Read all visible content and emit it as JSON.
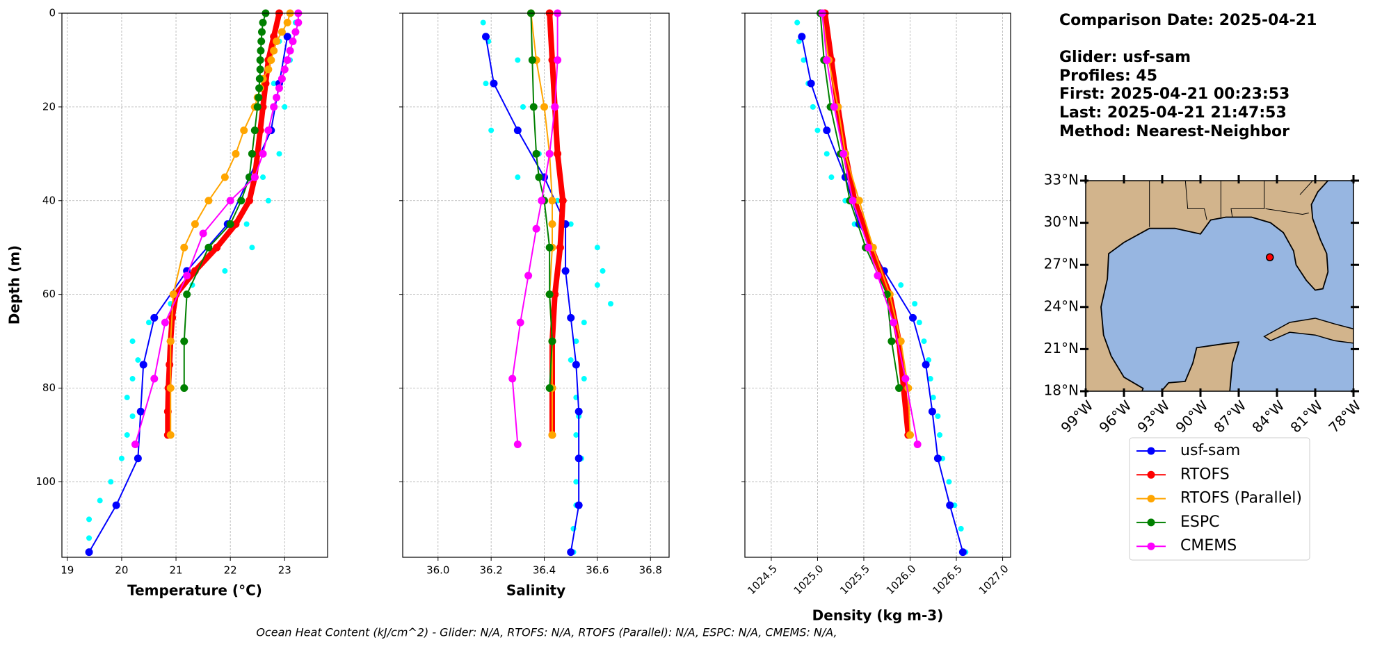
{
  "header": {
    "title": "Comparison Date: 2025-04-21",
    "lines": [
      "Glider: usf-sam",
      "Profiles: 45",
      "First: 2025-04-21 00:23:53",
      "Last: 2025-04-21 21:47:53",
      "Method: Nearest-Neighbor"
    ]
  },
  "footer": "Ocean Heat Content (kJ/cm^2) - Glider: N/A,  RTOFS: N/A,  RTOFS (Parallel): N/A,  ESPC: N/A,  CMEMS: N/A,",
  "chart_data": [
    {
      "type": "line",
      "xlabel": "Temperature (°C)",
      "ylabel": "Depth (m)",
      "xlim": [
        18.9,
        23.79
      ],
      "xticks": [
        19,
        20,
        21,
        22,
        23
      ],
      "ylim": [
        116.1,
        0
      ],
      "yticks": [
        0,
        20,
        40,
        60,
        80,
        100
      ],
      "grid": true,
      "series": [
        {
          "color": "#00ffff",
          "marker": "dot",
          "y": [
            2,
            6,
            10,
            15,
            20,
            25,
            30,
            35,
            40,
            45,
            50,
            55,
            58,
            62,
            66,
            70,
            74,
            78,
            82,
            86,
            90,
            95,
            100,
            104,
            108,
            112,
            115
          ],
          "x": [
            23.2,
            22.9,
            23.1,
            22.8,
            23.0,
            22.7,
            22.9,
            22.6,
            22.7,
            22.3,
            22.4,
            21.9,
            21.3,
            20.9,
            20.5,
            20.2,
            20.3,
            20.2,
            20.1,
            20.2,
            20.1,
            20.0,
            19.8,
            19.6,
            19.4,
            19.4,
            19.4
          ]
        },
        {
          "name": "usf-sam",
          "color": "#0000ff",
          "linewidth": 2,
          "y": [
            5,
            15,
            25,
            35,
            45,
            55,
            65,
            75,
            85,
            95,
            105,
            115
          ],
          "x": [
            23.05,
            22.9,
            22.75,
            22.35,
            21.95,
            21.2,
            20.6,
            20.4,
            20.35,
            20.3,
            19.9,
            19.4
          ]
        },
        {
          "name": "RTOFS",
          "color": "#ff0000",
          "linewidth": 8,
          "y": [
            0,
            5,
            10,
            15,
            20,
            25,
            30,
            35,
            40,
            45,
            50,
            55,
            60,
            65,
            70,
            75,
            80,
            85,
            90
          ],
          "x": [
            22.9,
            22.8,
            22.7,
            22.65,
            22.6,
            22.55,
            22.5,
            22.45,
            22.35,
            22.1,
            21.75,
            21.35,
            21.0,
            20.93,
            20.9,
            20.88,
            20.86,
            20.85,
            20.85
          ]
        },
        {
          "name": "RTOFS (Parallel)",
          "color": "#ffa500",
          "linewidth": 2,
          "y": [
            0,
            2,
            4,
            6,
            8,
            10,
            12,
            14,
            16,
            18,
            20,
            25,
            30,
            35,
            40,
            45,
            50,
            60,
            70,
            80,
            90
          ],
          "x": [
            23.1,
            23.05,
            22.95,
            22.85,
            22.8,
            22.75,
            22.7,
            22.6,
            22.55,
            22.5,
            22.45,
            22.25,
            22.1,
            21.9,
            21.6,
            21.35,
            21.15,
            20.95,
            20.9,
            20.9,
            20.9
          ]
        },
        {
          "name": "ESPC",
          "color": "#008000",
          "linewidth": 2,
          "y": [
            0,
            2,
            4,
            6,
            8,
            10,
            12,
            14,
            16,
            18,
            20,
            25,
            30,
            35,
            40,
            45,
            50,
            60,
            70,
            80
          ],
          "x": [
            22.65,
            22.6,
            22.58,
            22.57,
            22.56,
            22.55,
            22.55,
            22.54,
            22.53,
            22.52,
            22.5,
            22.45,
            22.4,
            22.35,
            22.2,
            22.0,
            21.6,
            21.2,
            21.15,
            21.15
          ]
        },
        {
          "name": "CMEMS",
          "color": "#ff00ff",
          "linewidth": 2,
          "y": [
            0,
            2,
            4,
            6,
            8,
            10,
            12,
            14,
            16,
            18,
            20,
            25,
            30,
            35,
            40,
            47,
            56,
            66,
            78,
            92
          ],
          "x": [
            23.25,
            23.25,
            23.2,
            23.15,
            23.1,
            23.05,
            23.0,
            22.95,
            22.9,
            22.85,
            22.8,
            22.7,
            22.6,
            22.45,
            22.0,
            21.5,
            21.2,
            20.8,
            20.6,
            20.25
          ]
        }
      ]
    },
    {
      "type": "line",
      "xlabel": "Salinity",
      "xlim": [
        35.867,
        36.87
      ],
      "xticks": [
        {
          "value": 36,
          "label": "36.0"
        },
        36.2,
        36.4,
        36.6,
        36.8
      ],
      "ylim": [
        116.1,
        0
      ],
      "yticks": [
        0,
        20,
        40,
        60,
        80,
        100
      ],
      "ytick_labels": false,
      "grid": true,
      "series": [
        {
          "color": "#00ffff",
          "marker": "dot",
          "y": [
            2,
            6,
            10,
            15,
            20,
            25,
            30,
            35,
            40,
            45,
            50,
            55,
            58,
            62,
            66,
            70,
            74,
            78,
            82,
            86,
            90,
            95,
            100,
            105,
            110,
            115
          ],
          "x": [
            36.17,
            36.19,
            36.3,
            36.18,
            36.32,
            36.2,
            36.38,
            36.3,
            36.45,
            36.5,
            36.6,
            36.62,
            36.6,
            36.65,
            36.55,
            36.52,
            36.5,
            36.55,
            36.52,
            36.53,
            36.52,
            36.54,
            36.52,
            36.52,
            36.51,
            36.51
          ]
        },
        {
          "color": "#0000ff",
          "linewidth": 2,
          "y": [
            5,
            15,
            25,
            35,
            45,
            55,
            65,
            75,
            85,
            95,
            105,
            115
          ],
          "x": [
            36.18,
            36.21,
            36.3,
            36.4,
            36.48,
            36.48,
            36.5,
            36.52,
            36.53,
            36.53,
            36.53,
            36.5
          ]
        },
        {
          "color": "#ff0000",
          "linewidth": 8,
          "y": [
            0,
            10,
            20,
            30,
            40,
            50,
            60,
            70,
            80,
            90
          ],
          "x": [
            36.42,
            36.43,
            36.44,
            36.45,
            36.47,
            36.46,
            36.44,
            36.43,
            36.43,
            36.43
          ]
        },
        {
          "color": "#ffa500",
          "linewidth": 2,
          "y": [
            0,
            10,
            20,
            30,
            40,
            45,
            50,
            60,
            70,
            80,
            90
          ],
          "x": [
            36.35,
            36.37,
            36.4,
            36.42,
            36.43,
            36.43,
            36.43,
            36.42,
            36.43,
            36.43,
            36.43
          ]
        },
        {
          "color": "#008000",
          "linewidth": 2,
          "y": [
            0,
            10,
            20,
            30,
            35,
            40,
            50,
            60,
            70,
            80
          ],
          "x": [
            36.35,
            36.355,
            36.36,
            36.37,
            36.38,
            36.4,
            36.42,
            36.42,
            36.43,
            36.42
          ]
        },
        {
          "color": "#ff00ff",
          "linewidth": 2,
          "y": [
            0,
            10,
            20,
            30,
            40,
            46,
            56,
            66,
            78,
            92
          ],
          "x": [
            36.45,
            36.45,
            36.44,
            36.42,
            36.39,
            36.37,
            36.34,
            36.31,
            36.28,
            36.3
          ]
        }
      ]
    },
    {
      "type": "line",
      "xlabel": "Density (kg m-3)",
      "xlim": [
        1024.215,
        1027.086
      ],
      "xticks": [
        1024.5,
        {
          "value": 1025,
          "label": "1025.0"
        },
        1025.5,
        {
          "value": 1026,
          "label": "1026.0"
        },
        1026.5,
        {
          "value": 1027,
          "label": "1027.0"
        }
      ],
      "xtick_rotation": 45,
      "ylim": [
        116.1,
        0
      ],
      "yticks": [
        0,
        20,
        40,
        60,
        80,
        100
      ],
      "ytick_labels": false,
      "grid": true,
      "series": [
        {
          "color": "#00ffff",
          "marker": "dot",
          "y": [
            2,
            6,
            10,
            15,
            20,
            25,
            30,
            35,
            40,
            45,
            50,
            55,
            58,
            62,
            66,
            70,
            74,
            78,
            82,
            86,
            90,
            95,
            100,
            105,
            110,
            115
          ],
          "x": [
            1024.78,
            1024.8,
            1024.85,
            1024.9,
            1024.95,
            1025.0,
            1025.1,
            1025.15,
            1025.3,
            1025.4,
            1025.6,
            1025.7,
            1025.9,
            1026.05,
            1026.1,
            1026.15,
            1026.2,
            1026.22,
            1026.25,
            1026.3,
            1026.32,
            1026.35,
            1026.42,
            1026.48,
            1026.55,
            1026.6
          ]
        },
        {
          "color": "#0000ff",
          "linewidth": 2,
          "y": [
            5,
            15,
            25,
            35,
            45,
            55,
            65,
            75,
            85,
            95,
            105,
            115
          ],
          "x": [
            1024.83,
            1024.93,
            1025.1,
            1025.3,
            1025.45,
            1025.72,
            1026.03,
            1026.17,
            1026.24,
            1026.3,
            1026.43,
            1026.57
          ]
        },
        {
          "color": "#ff0000",
          "linewidth": 8,
          "y": [
            0,
            10,
            20,
            30,
            40,
            50,
            60,
            70,
            80,
            90
          ],
          "x": [
            1025.08,
            1025.15,
            1025.22,
            1025.3,
            1025.4,
            1025.58,
            1025.78,
            1025.88,
            1025.93,
            1025.98
          ]
        },
        {
          "color": "#ffa500",
          "linewidth": 2,
          "y": [
            0,
            10,
            20,
            30,
            40,
            50,
            60,
            70,
            80,
            90
          ],
          "x": [
            1025.05,
            1025.12,
            1025.22,
            1025.3,
            1025.45,
            1025.6,
            1025.78,
            1025.9,
            1025.98,
            1026.0
          ]
        },
        {
          "color": "#008000",
          "linewidth": 2,
          "y": [
            0,
            10,
            20,
            30,
            40,
            50,
            60,
            70,
            80
          ],
          "x": [
            1025.03,
            1025.07,
            1025.14,
            1025.25,
            1025.35,
            1025.52,
            1025.75,
            1025.8,
            1025.88
          ]
        },
        {
          "color": "#ff00ff",
          "linewidth": 2,
          "y": [
            0,
            10,
            20,
            30,
            40,
            50,
            56,
            66,
            78,
            92
          ],
          "x": [
            1025.05,
            1025.1,
            1025.18,
            1025.28,
            1025.38,
            1025.55,
            1025.65,
            1025.82,
            1025.95,
            1026.08
          ]
        }
      ]
    },
    {
      "type": "map",
      "xlim": [
        -99,
        -78
      ],
      "xticks": [
        {
          "value": -99,
          "label": "99°W"
        },
        {
          "value": -96,
          "label": "96°W"
        },
        {
          "value": -93,
          "label": "93°W"
        },
        {
          "value": -90,
          "label": "90°W"
        },
        {
          "value": -87,
          "label": "87°W"
        },
        {
          "value": -84,
          "label": "84°W"
        },
        {
          "value": -81,
          "label": "81°W"
        },
        {
          "value": -78,
          "label": "78°W"
        }
      ],
      "ylim": [
        18,
        33
      ],
      "yticks": [
        {
          "value": 18,
          "label": "18°N"
        },
        {
          "value": 21,
          "label": "21°N"
        },
        {
          "value": 24,
          "label": "24°N"
        },
        {
          "value": 27,
          "label": "27°N"
        },
        {
          "value": 30,
          "label": "30°N"
        },
        {
          "value": 33,
          "label": "33°N"
        }
      ],
      "series": [
        {
          "color": "#ff0000",
          "x": [
            -84.56
          ],
          "y": [
            27.54
          ]
        }
      ]
    }
  ]
}
